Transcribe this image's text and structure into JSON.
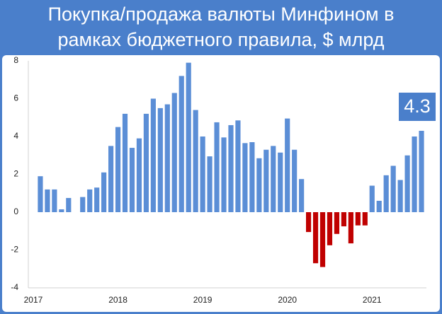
{
  "chart_data": {
    "type": "bar",
    "title": [
      "Покупка/продажа валюты Минфином в",
      "рамках бюджетного правила, $ млрд"
    ],
    "annotation": "4.3",
    "categories": [
      "2017",
      null,
      null,
      null,
      null,
      null,
      null,
      null,
      null,
      null,
      null,
      null,
      "2018",
      null,
      null,
      null,
      null,
      null,
      null,
      null,
      null,
      null,
      null,
      null,
      "2019",
      null,
      null,
      null,
      null,
      null,
      null,
      null,
      null,
      null,
      null,
      null,
      "2020",
      null,
      null,
      null,
      null,
      null,
      null,
      null,
      null,
      null,
      null,
      null,
      "2021",
      null,
      null,
      null,
      null,
      null,
      null,
      null
    ],
    "values": [
      null,
      1.9,
      1.2,
      1.2,
      0.15,
      0.75,
      0,
      0.8,
      1.2,
      1.3,
      2.1,
      3.5,
      4.5,
      5.2,
      3.4,
      3.9,
      5.2,
      6.0,
      5.5,
      5.7,
      6.3,
      7.2,
      7.9,
      5.4,
      4.0,
      2.95,
      4.75,
      3.95,
      4.6,
      4.85,
      3.65,
      3.7,
      2.85,
      3.3,
      3.5,
      3.15,
      4.95,
      3.3,
      1.75,
      -1.05,
      -2.7,
      -2.9,
      -1.75,
      -1.15,
      -0.75,
      -1.65,
      -0.7,
      -0.7,
      1.4,
      0.6,
      1.95,
      2.45,
      1.7,
      3.0,
      4.0,
      4.3
    ],
    "color": "#5b8ed6",
    "negative_color": "#c00000",
    "ylim": [
      -4,
      8
    ],
    "yticks": [
      -4,
      -2,
      0,
      2,
      4,
      6,
      8
    ],
    "grid": false
  }
}
